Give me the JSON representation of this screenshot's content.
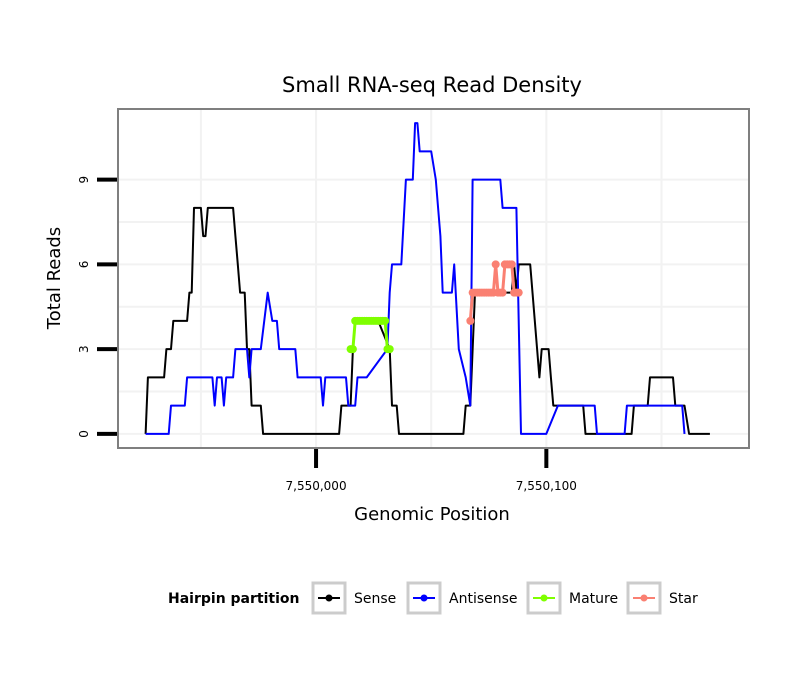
{
  "chart_data": {
    "type": "line",
    "title": "Small RNA-seq Read Density",
    "xlabel": "Genomic Position",
    "ylabel": "Total Reads",
    "xlim": [
      7549914,
      7550188
    ],
    "ylim": [
      -0.5,
      11.5
    ],
    "x_ticks": [
      {
        "value": 7550000,
        "label": "7,550,000"
      },
      {
        "value": 7550100,
        "label": "7,550,100"
      }
    ],
    "y_ticks": [
      {
        "value": 0,
        "label": "0"
      },
      {
        "value": 3,
        "label": "3"
      },
      {
        "value": 6,
        "label": "6"
      },
      {
        "value": 9,
        "label": "9"
      }
    ],
    "grid": true,
    "legend": {
      "title": "Hairpin partition",
      "position": "bottom"
    },
    "series": [
      {
        "name": "Sense",
        "color": "#000000",
        "points": [
          [
            7549926,
            0
          ],
          [
            7549927,
            2
          ],
          [
            7549934,
            2
          ],
          [
            7549935,
            3
          ],
          [
            7549937,
            3
          ],
          [
            7549938,
            4
          ],
          [
            7549944,
            4
          ],
          [
            7549945,
            5
          ],
          [
            7549946,
            5
          ],
          [
            7549947,
            8
          ],
          [
            7549950,
            8
          ],
          [
            7549951,
            7
          ],
          [
            7549952,
            7
          ],
          [
            7549953,
            8
          ],
          [
            7549964,
            8
          ],
          [
            7549965,
            7
          ],
          [
            7549966,
            6
          ],
          [
            7549967,
            5
          ],
          [
            7549969,
            5
          ],
          [
            7549970,
            3
          ],
          [
            7549971,
            3
          ],
          [
            7549972,
            1
          ],
          [
            7549976,
            1
          ],
          [
            7549977,
            0
          ],
          [
            7549986,
            0
          ],
          [
            7550010,
            0
          ],
          [
            7550011,
            1
          ],
          [
            7550015,
            1
          ],
          [
            7550016,
            3
          ],
          [
            7550017,
            4
          ],
          [
            7550027,
            4
          ],
          [
            7550032,
            3
          ],
          [
            7550033,
            1
          ],
          [
            7550035,
            1
          ],
          [
            7550036,
            0
          ],
          [
            7550047,
            0
          ],
          [
            7550064,
            0
          ],
          [
            7550065,
            1
          ],
          [
            7550067,
            1
          ],
          [
            7550069,
            5
          ],
          [
            7550085,
            5
          ],
          [
            7550086,
            6
          ],
          [
            7550087,
            5
          ],
          [
            7550088,
            6
          ],
          [
            7550093,
            6
          ],
          [
            7550094,
            5
          ],
          [
            7550096,
            3
          ],
          [
            7550097,
            2
          ],
          [
            7550098,
            3
          ],
          [
            7550101,
            3
          ],
          [
            7550102,
            2
          ],
          [
            7550103,
            1
          ],
          [
            7550104,
            1
          ],
          [
            7550116,
            1
          ],
          [
            7550117,
            0
          ],
          [
            7550130,
            0
          ],
          [
            7550137,
            0
          ],
          [
            7550138,
            1
          ],
          [
            7550144,
            1
          ],
          [
            7550145,
            2
          ],
          [
            7550155,
            2
          ],
          [
            7550156,
            1
          ],
          [
            7550160,
            1
          ],
          [
            7550162,
            0
          ],
          [
            7550171,
            0
          ]
        ]
      },
      {
        "name": "Antisense",
        "color": "#0000ff",
        "points": [
          [
            7549926,
            0
          ],
          [
            7549936,
            0
          ],
          [
            7549937,
            1
          ],
          [
            7549943,
            1
          ],
          [
            7549944,
            2
          ],
          [
            7549955,
            2
          ],
          [
            7549956,
            1
          ],
          [
            7549957,
            2
          ],
          [
            7549959,
            2
          ],
          [
            7549960,
            1
          ],
          [
            7549961,
            2
          ],
          [
            7549964,
            2
          ],
          [
            7549965,
            3
          ],
          [
            7549970,
            3
          ],
          [
            7549971,
            2
          ],
          [
            7549972,
            3
          ],
          [
            7549976,
            3
          ],
          [
            7549979,
            5
          ],
          [
            7549981,
            4
          ],
          [
            7549983,
            4
          ],
          [
            7549984,
            3
          ],
          [
            7549991,
            3
          ],
          [
            7549992,
            2
          ],
          [
            7550002,
            2
          ],
          [
            7550003,
            1
          ],
          [
            7550004,
            2
          ],
          [
            7550013,
            2
          ],
          [
            7550014,
            1
          ],
          [
            7550017,
            1
          ],
          [
            7550018,
            2
          ],
          [
            7550022,
            2
          ],
          [
            7550031,
            3
          ],
          [
            7550032,
            5
          ],
          [
            7550033,
            6
          ],
          [
            7550037,
            6
          ],
          [
            7550039,
            9
          ],
          [
            7550042,
            9
          ],
          [
            7550043,
            11
          ],
          [
            7550044,
            11
          ],
          [
            7550045,
            10
          ],
          [
            7550050,
            10
          ],
          [
            7550052,
            9
          ],
          [
            7550053,
            8
          ],
          [
            7550054,
            7
          ],
          [
            7550055,
            5
          ],
          [
            7550059,
            5
          ],
          [
            7550060,
            6
          ],
          [
            7550062,
            3
          ],
          [
            7550065,
            2
          ],
          [
            7550067,
            1
          ],
          [
            7550068,
            9
          ],
          [
            7550080,
            9
          ],
          [
            7550081,
            8
          ],
          [
            7550087,
            8
          ],
          [
            7550089,
            0
          ],
          [
            7550100,
            0
          ],
          [
            7550105,
            1
          ],
          [
            7550121,
            1
          ],
          [
            7550122,
            0
          ],
          [
            7550134,
            0
          ],
          [
            7550135,
            1
          ],
          [
            7550159,
            1
          ],
          [
            7550160,
            0
          ]
        ]
      },
      {
        "name": "Mature",
        "color": "#7fff00",
        "points": [
          [
            7550015,
            3
          ],
          [
            7550016,
            3
          ],
          [
            7550017,
            4
          ],
          [
            7550018,
            4
          ],
          [
            7550019,
            4
          ],
          [
            7550020,
            4
          ],
          [
            7550021,
            4
          ],
          [
            7550022,
            4
          ],
          [
            7550023,
            4
          ],
          [
            7550024,
            4
          ],
          [
            7550025,
            4
          ],
          [
            7550026,
            4
          ],
          [
            7550027,
            4
          ],
          [
            7550028,
            4
          ],
          [
            7550029,
            4
          ],
          [
            7550030,
            4
          ],
          [
            7550031,
            3
          ],
          [
            7550032,
            3
          ]
        ]
      },
      {
        "name": "Star",
        "color": "#fa8072",
        "points": [
          [
            7550067,
            4
          ],
          [
            7550068,
            5
          ],
          [
            7550069,
            5
          ],
          [
            7550070,
            5
          ],
          [
            7550071,
            5
          ],
          [
            7550072,
            5
          ],
          [
            7550073,
            5
          ],
          [
            7550074,
            5
          ],
          [
            7550075,
            5
          ],
          [
            7550076,
            5
          ],
          [
            7550077,
            5
          ],
          [
            7550078,
            6
          ],
          [
            7550079,
            5
          ],
          [
            7550080,
            5
          ],
          [
            7550081,
            5
          ],
          [
            7550082,
            6
          ],
          [
            7550083,
            6
          ],
          [
            7550084,
            6
          ],
          [
            7550085,
            6
          ],
          [
            7550086,
            5
          ],
          [
            7550087,
            5
          ],
          [
            7550088,
            5
          ]
        ]
      }
    ]
  }
}
